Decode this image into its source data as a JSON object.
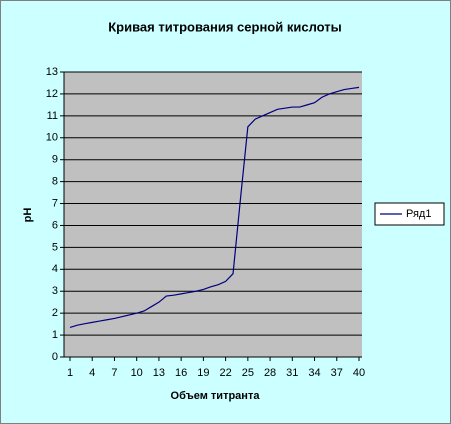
{
  "chart_data": {
    "type": "line",
    "title": "Кривая титрования серной кислоты",
    "x_label": "Объем титранта",
    "y_label": "pH",
    "categories": [
      1,
      null,
      null,
      4,
      null,
      null,
      7,
      null,
      null,
      10,
      null,
      null,
      13,
      null,
      null,
      16,
      null,
      null,
      19,
      null,
      null,
      22,
      null,
      null,
      25,
      null,
      null,
      28,
      null,
      null,
      31,
      null,
      null,
      34,
      null,
      null,
      37,
      null,
      null,
      40
    ],
    "series": [
      {
        "name": "Ряд1",
        "color": "#000080",
        "values": [
          1.35,
          1.45,
          1.52,
          1.58,
          1.64,
          1.7,
          1.76,
          1.84,
          1.92,
          2.0,
          2.1,
          2.3,
          2.5,
          2.78,
          2.82,
          2.88,
          2.94,
          3.0,
          3.08,
          3.2,
          3.3,
          3.45,
          3.8,
          7.2,
          10.5,
          10.85,
          11.0,
          11.15,
          11.3,
          11.35,
          11.4,
          11.4,
          11.5,
          11.6,
          11.85,
          12.0,
          12.1,
          12.2,
          12.25,
          12.3
        ]
      }
    ],
    "ylim": [
      0,
      13
    ],
    "yticks": [
      0,
      1,
      2,
      3,
      4,
      5,
      6,
      7,
      8,
      9,
      10,
      11,
      12,
      13
    ],
    "grid": true,
    "legend": "right"
  }
}
